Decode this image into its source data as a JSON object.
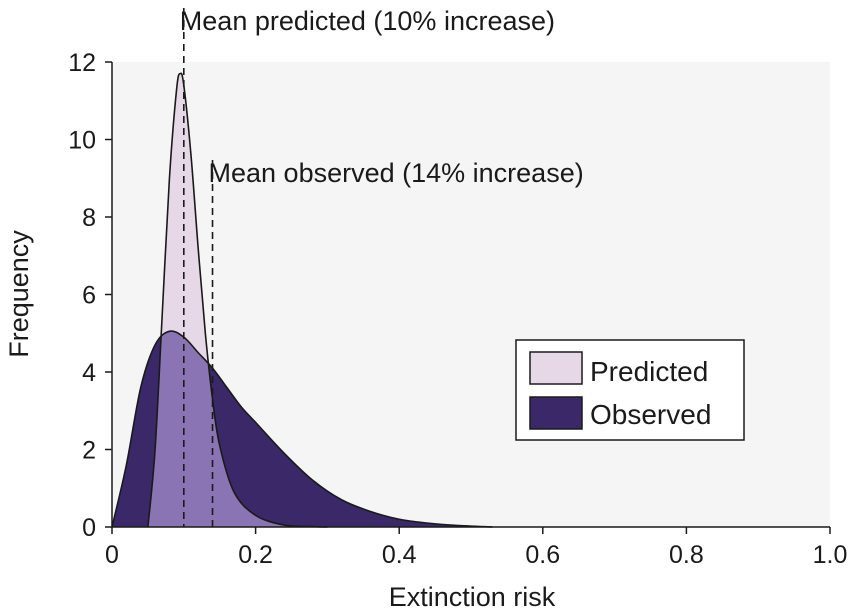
{
  "chart_data": {
    "type": "area",
    "xlabel": "Extinction risk",
    "ylabel": "Frequency",
    "xlim": [
      0,
      1.0
    ],
    "ylim": [
      0,
      12
    ],
    "x_ticks": [
      0,
      0.2,
      0.4,
      0.6,
      0.8,
      1.0
    ],
    "x_tick_labels": [
      "0",
      "0.2",
      "0.4",
      "0.6",
      "0.8",
      "1.0"
    ],
    "y_ticks": [
      0,
      2,
      4,
      6,
      8,
      10,
      12
    ],
    "y_tick_labels": [
      "0",
      "2",
      "4",
      "6",
      "8",
      "10",
      "12"
    ],
    "grid": false,
    "legend_position": "right",
    "colors": {
      "predicted_fill": "#e7d8e7",
      "observed_fill": "#3a2868",
      "overlap_fill": "#8b74b4",
      "outline": "#1a1a1a",
      "plot_background": "#f5f5f5"
    },
    "series": [
      {
        "name": "Predicted",
        "x": [
          0.05,
          0.06,
          0.07,
          0.08,
          0.09,
          0.095,
          0.1,
          0.11,
          0.12,
          0.13,
          0.14,
          0.15,
          0.17,
          0.2,
          0.24,
          0.28,
          0.3
        ],
        "y": [
          0,
          2.0,
          5.5,
          9.0,
          11.3,
          11.7,
          11.4,
          9.6,
          7.2,
          5.0,
          3.3,
          2.1,
          0.9,
          0.3,
          0.05,
          0.01,
          0
        ]
      },
      {
        "name": "Observed",
        "x": [
          0.0,
          0.02,
          0.04,
          0.06,
          0.08,
          0.1,
          0.12,
          0.14,
          0.16,
          0.18,
          0.2,
          0.24,
          0.28,
          0.32,
          0.36,
          0.4,
          0.44,
          0.48,
          0.53
        ],
        "y": [
          0,
          1.6,
          3.6,
          4.7,
          5.05,
          4.9,
          4.5,
          4.1,
          3.6,
          3.1,
          2.7,
          1.9,
          1.2,
          0.7,
          0.4,
          0.2,
          0.1,
          0.04,
          0
        ]
      }
    ],
    "annotations": [
      {
        "text": "Mean predicted (10% increase)",
        "x": 0.1
      },
      {
        "text": "Mean observed (14% increase)",
        "x": 0.14
      }
    ]
  }
}
